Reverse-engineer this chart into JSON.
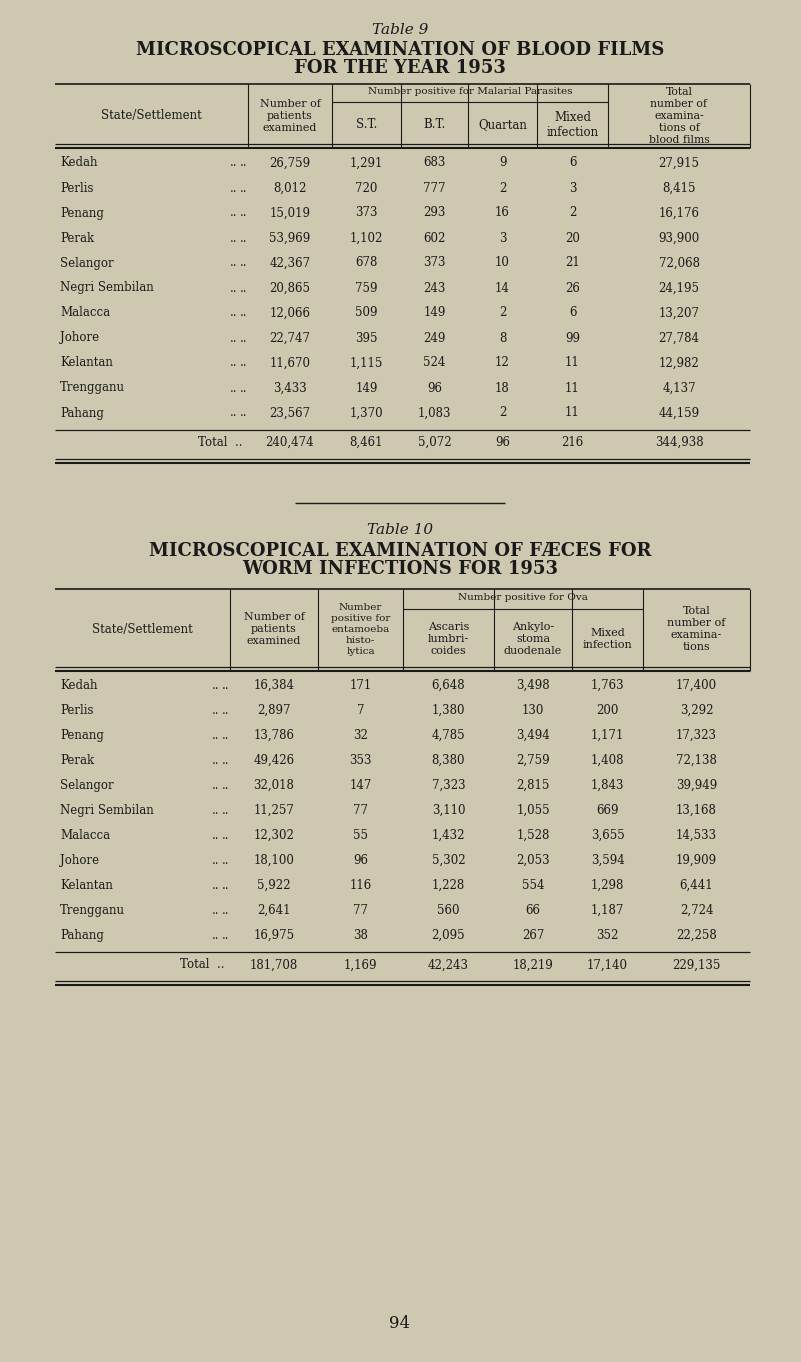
{
  "bg_color": "#cec8b0",
  "text_color": "#1a1a1a",
  "page_number": "94",
  "table1": {
    "table_number": "Table 9",
    "title_line1": "MICROSCOPICAL EXAMINATION OF BLOOD FILMS",
    "title_line2": "FOR THE YEAR 1953",
    "rows": [
      [
        "Kedah",
        "26,759",
        "1,291",
        "683",
        "9",
        "6",
        "27,915"
      ],
      [
        "Perlis",
        "8,012",
        "720",
        "777",
        "2",
        "3",
        "8,415"
      ],
      [
        "Penang",
        "15,019",
        "373",
        "293",
        "16",
        "2",
        "16,176"
      ],
      [
        "Perak",
        "53,969",
        "1,102",
        "602",
        "3",
        "20",
        "93,900"
      ],
      [
        "Selangor",
        "42,367",
        "678",
        "373",
        "10",
        "21",
        "72,068"
      ],
      [
        "Negri Sembilan",
        "20,865",
        "759",
        "243",
        "14",
        "26",
        "24,195"
      ],
      [
        "Malacca",
        "12,066",
        "509",
        "149",
        "2",
        "6",
        "13,207"
      ],
      [
        "Johore",
        "22,747",
        "395",
        "249",
        "8",
        "99",
        "27,784"
      ],
      [
        "Kelantan",
        "11,670",
        "1,115",
        "524",
        "12",
        "11",
        "12,982"
      ],
      [
        "Trengganu",
        "3,433",
        "149",
        "96",
        "18",
        "11",
        "4,137"
      ],
      [
        "Pahang",
        "23,567",
        "1,370",
        "1,083",
        "2",
        "11",
        "44,159"
      ]
    ],
    "total_row": [
      "240,474",
      "8,461",
      "5,072",
      "96",
      "216",
      "344,938"
    ]
  },
  "table2": {
    "table_number": "Table 10",
    "title_line1": "MICROSCOPICAL EXAMINATION OF FÆCES FOR",
    "title_line2": "WORM INFECTIONS FOR 1953",
    "rows": [
      [
        "Kedah",
        "16,384",
        "171",
        "6,648",
        "3,498",
        "1,763",
        "17,400"
      ],
      [
        "Perlis",
        "2,897",
        "7",
        "1,380",
        "130",
        "200",
        "3,292"
      ],
      [
        "Penang",
        "13,786",
        "32",
        "4,785",
        "3,494",
        "1,171",
        "17,323"
      ],
      [
        "Perak",
        "49,426",
        "353",
        "8,380",
        "2,759",
        "1,408",
        "72,138"
      ],
      [
        "Selangor",
        "32,018",
        "147",
        "7,323",
        "2,815",
        "1,843",
        "39,949"
      ],
      [
        "Negri Sembilan",
        "11,257",
        "77",
        "3,110",
        "1,055",
        "669",
        "13,168"
      ],
      [
        "Malacca",
        "12,302",
        "55",
        "1,432",
        "1,528",
        "3,655",
        "14,533"
      ],
      [
        "Johore",
        "18,100",
        "96",
        "5,302",
        "2,053",
        "3,594",
        "19,909"
      ],
      [
        "Kelantan",
        "5,922",
        "116",
        "1,228",
        "554",
        "1,298",
        "6,441"
      ],
      [
        "Trengganu",
        "2,641",
        "77",
        "560",
        "66",
        "1,187",
        "2,724"
      ],
      [
        "Pahang",
        "16,975",
        "38",
        "2,095",
        "267",
        "352",
        "22,258"
      ]
    ],
    "total_row": [
      "181,708",
      "1,169",
      "42,243",
      "18,219",
      "17,140",
      "229,135"
    ]
  }
}
